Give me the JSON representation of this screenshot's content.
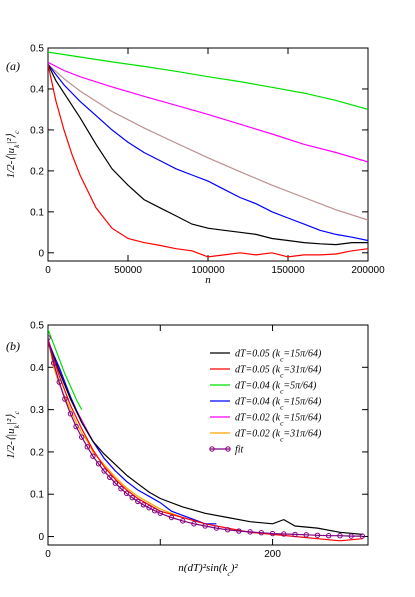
{
  "chart_data": [
    {
      "type": "line",
      "panel_label": "(a)",
      "xlabel": "n",
      "ylabel": "1/2-⟨|u_k|²⟩_c",
      "xlim": [
        0,
        200000
      ],
      "ylim": [
        -0.02,
        0.5
      ],
      "x_ticks": [
        0,
        50000,
        100000,
        150000,
        200000
      ],
      "y_ticks": [
        0,
        0.1,
        0.2,
        0.3,
        0.4,
        0.5
      ],
      "x_tick_labels": [
        "0",
        "50000",
        "100000",
        "150000",
        "200000"
      ],
      "y_tick_labels": [
        "0",
        "0.1",
        "0.2",
        "0.3",
        "0.4",
        "0.5"
      ],
      "series": [
        {
          "color": "#00e000",
          "x": [
            0,
            20000,
            40000,
            60000,
            80000,
            100000,
            120000,
            140000,
            160000,
            180000,
            200000
          ],
          "y": [
            0.49,
            0.478,
            0.466,
            0.455,
            0.443,
            0.43,
            0.418,
            0.404,
            0.39,
            0.372,
            0.35
          ]
        },
        {
          "color": "#ff00ff",
          "x": [
            0,
            10000,
            20000,
            40000,
            60000,
            80000,
            100000,
            120000,
            140000,
            160000,
            180000,
            200000
          ],
          "y": [
            0.465,
            0.445,
            0.43,
            0.405,
            0.382,
            0.36,
            0.338,
            0.314,
            0.29,
            0.265,
            0.245,
            0.222
          ]
        },
        {
          "color": "#bc8f8f",
          "x": [
            0,
            10000,
            20000,
            30000,
            40000,
            60000,
            80000,
            100000,
            120000,
            140000,
            160000,
            180000,
            200000
          ],
          "y": [
            0.46,
            0.425,
            0.395,
            0.37,
            0.345,
            0.305,
            0.268,
            0.232,
            0.198,
            0.165,
            0.135,
            0.105,
            0.08
          ]
        },
        {
          "color": "#0000ff",
          "x": [
            0,
            10000,
            20000,
            30000,
            40000,
            50000,
            60000,
            70000,
            80000,
            90000,
            100000,
            110000,
            120000,
            130000,
            140000,
            150000,
            160000,
            170000,
            180000,
            190000,
            200000
          ],
          "y": [
            0.46,
            0.41,
            0.37,
            0.335,
            0.3,
            0.27,
            0.245,
            0.225,
            0.205,
            0.19,
            0.175,
            0.155,
            0.135,
            0.12,
            0.1,
            0.085,
            0.07,
            0.055,
            0.045,
            0.038,
            0.03
          ]
        },
        {
          "color": "#000000",
          "x": [
            0,
            5000,
            10000,
            20000,
            30000,
            40000,
            50000,
            60000,
            70000,
            80000,
            90000,
            100000,
            110000,
            120000,
            130000,
            140000,
            150000,
            160000,
            170000,
            180000,
            190000,
            200000
          ],
          "y": [
            0.46,
            0.42,
            0.39,
            0.33,
            0.265,
            0.205,
            0.165,
            0.13,
            0.11,
            0.09,
            0.07,
            0.06,
            0.055,
            0.05,
            0.045,
            0.035,
            0.03,
            0.025,
            0.022,
            0.02,
            0.025,
            0.025
          ]
        },
        {
          "color": "#ff0000",
          "x": [
            0,
            5000,
            10000,
            15000,
            20000,
            30000,
            40000,
            50000,
            60000,
            70000,
            80000,
            90000,
            100000,
            110000,
            120000,
            130000,
            140000,
            150000,
            160000,
            170000,
            180000,
            190000,
            200000
          ],
          "y": [
            0.46,
            0.37,
            0.3,
            0.24,
            0.19,
            0.11,
            0.06,
            0.035,
            0.025,
            0.018,
            0.01,
            0.005,
            -0.01,
            -0.005,
            0.0,
            -0.005,
            0.0,
            -0.01,
            -0.005,
            -0.005,
            -0.003,
            0.005,
            0.01
          ]
        }
      ]
    },
    {
      "type": "line",
      "panel_label": "(b)",
      "xlabel": "n(dT)²sin(k_c)²",
      "ylabel": "1/2-⟨|u_k|²⟩_c",
      "xlim": [
        0,
        285
      ],
      "ylim": [
        -0.02,
        0.5
      ],
      "x_ticks": [
        0,
        100,
        200
      ],
      "y_ticks": [
        0,
        0.1,
        0.2,
        0.3,
        0.4,
        0.5
      ],
      "x_tick_labels": [
        "0",
        "",
        "200"
      ],
      "y_tick_labels": [
        "0",
        "0.1",
        "0.2",
        "0.3",
        "0.4",
        "0.5"
      ],
      "legend_position": "top-right",
      "legend": [
        {
          "label": "dT=0.05 (k_c=15π/64)",
          "color": "#000000"
        },
        {
          "label": "dT=0.05 (k_c=31π/64)",
          "color": "#ff0000"
        },
        {
          "label": "dT=0.04 (k_c=5π/64)",
          "color": "#00e000"
        },
        {
          "label": "dT=0.04 (k_c=15π/64)",
          "color": "#0000ff"
        },
        {
          "label": "dT=0.02 (k_c=15π/64)",
          "color": "#ff00ff"
        },
        {
          "label": "dT=0.02 (k_c=31π/64)",
          "color": "#ffa500"
        },
        {
          "label": "fit",
          "color": "#800080",
          "marker": "circle"
        }
      ],
      "series": [
        {
          "color": "#00e000",
          "x": [
            0,
            5,
            10,
            15,
            20,
            25,
            30
          ],
          "y": [
            0.49,
            0.455,
            0.42,
            0.385,
            0.355,
            0.325,
            0.3
          ]
        },
        {
          "color": "#ff00ff",
          "x": [
            0,
            5,
            10,
            15,
            20,
            25,
            30,
            35,
            40,
            45,
            50,
            55,
            60
          ],
          "y": [
            0.465,
            0.43,
            0.395,
            0.36,
            0.33,
            0.3,
            0.275,
            0.25,
            0.225,
            0.205,
            0.185,
            0.17,
            0.155
          ]
        },
        {
          "color": "#ffa500",
          "x": [
            0,
            5,
            10,
            15,
            20,
            25,
            30,
            35,
            40,
            45,
            50,
            60,
            70,
            80,
            90,
            100,
            110,
            120
          ],
          "y": [
            0.465,
            0.4,
            0.36,
            0.33,
            0.3,
            0.27,
            0.245,
            0.225,
            0.2,
            0.185,
            0.17,
            0.14,
            0.115,
            0.095,
            0.08,
            0.065,
            0.055,
            0.045
          ]
        },
        {
          "color": "#0000ff",
          "x": [
            0,
            10,
            20,
            30,
            40,
            50,
            60,
            70,
            80,
            90,
            100,
            110,
            120,
            130,
            140,
            150
          ],
          "y": [
            0.46,
            0.4,
            0.33,
            0.27,
            0.225,
            0.185,
            0.155,
            0.13,
            0.11,
            0.095,
            0.08,
            0.06,
            0.05,
            0.04,
            0.03,
            0.03
          ]
        },
        {
          "color": "#000000",
          "x": [
            0,
            10,
            20,
            30,
            40,
            50,
            60,
            70,
            80,
            90,
            100,
            120,
            140,
            160,
            180,
            200,
            210,
            220,
            240,
            260,
            280
          ],
          "y": [
            0.46,
            0.39,
            0.325,
            0.27,
            0.225,
            0.195,
            0.17,
            0.145,
            0.125,
            0.105,
            0.09,
            0.07,
            0.055,
            0.045,
            0.035,
            0.03,
            0.04,
            0.025,
            0.02,
            0.01,
            0.005
          ]
        },
        {
          "color": "#ff0000",
          "x": [
            0,
            10,
            20,
            30,
            40,
            50,
            60,
            70,
            80,
            90,
            100,
            120,
            140,
            160,
            180,
            200,
            220,
            240,
            260,
            280
          ],
          "y": [
            0.46,
            0.38,
            0.31,
            0.255,
            0.205,
            0.165,
            0.135,
            0.11,
            0.09,
            0.075,
            0.06,
            0.045,
            0.03,
            0.02,
            0.01,
            0.005,
            0.0,
            -0.005,
            -0.01,
            -0.005
          ]
        },
        {
          "color": "#800080",
          "marker": "circle",
          "x": [
            0,
            5,
            10,
            15,
            20,
            25,
            30,
            35,
            40,
            45,
            50,
            55,
            60,
            65,
            70,
            75,
            80,
            85,
            90,
            95,
            100,
            110,
            120,
            130,
            140,
            150,
            160,
            170,
            180,
            190,
            200,
            210,
            220,
            230,
            240,
            250,
            260,
            270,
            280
          ],
          "y": [
            0.47,
            0.41,
            0.365,
            0.325,
            0.29,
            0.26,
            0.235,
            0.212,
            0.19,
            0.172,
            0.155,
            0.14,
            0.126,
            0.113,
            0.102,
            0.092,
            0.083,
            0.075,
            0.068,
            0.061,
            0.055,
            0.045,
            0.037,
            0.03,
            0.025,
            0.02,
            0.016,
            0.013,
            0.011,
            0.009,
            0.007,
            0.006,
            0.005,
            0.004,
            0.003,
            0.002,
            0.002,
            0.001,
            0.001
          ]
        }
      ]
    }
  ]
}
